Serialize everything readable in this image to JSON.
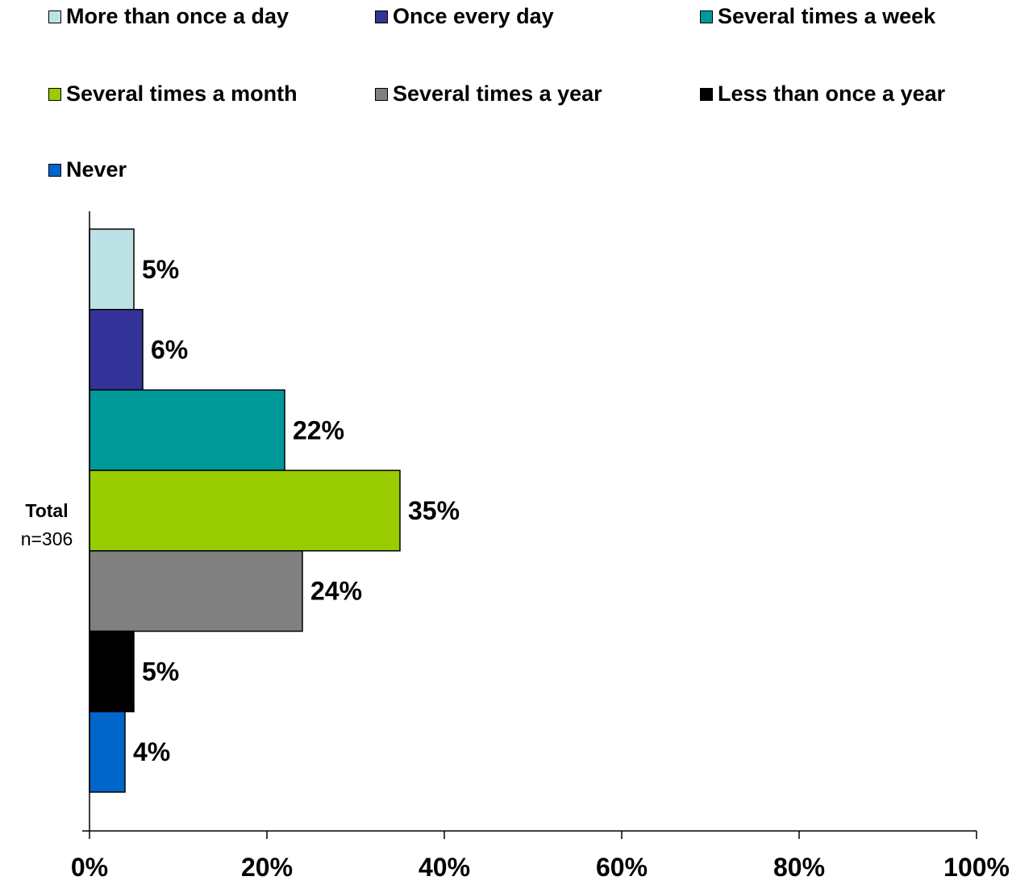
{
  "chart_data": {
    "type": "bar",
    "orientation": "horizontal",
    "categories": [
      "Total"
    ],
    "category_sublabels": [
      "n=306"
    ],
    "series": [
      {
        "name": "More than once a day",
        "values": [
          5
        ],
        "color": "#bde2e6",
        "label": "5%"
      },
      {
        "name": "Once every day",
        "values": [
          6
        ],
        "color": "#333399",
        "label": "6%"
      },
      {
        "name": "Several times a week",
        "values": [
          22
        ],
        "color": "#009999",
        "label": "22%"
      },
      {
        "name": "Several times a month",
        "values": [
          35
        ],
        "color": "#99cc00",
        "label": "35%"
      },
      {
        "name": "Several times a year",
        "values": [
          24
        ],
        "color": "#808080",
        "label": "24%"
      },
      {
        "name": "Less than once a year",
        "values": [
          5
        ],
        "color": "#000000",
        "label": "5%"
      },
      {
        "name": "Never",
        "values": [
          4
        ],
        "color": "#0066cc",
        "label": "4%"
      }
    ],
    "xlim": [
      0,
      100
    ],
    "x_ticks": [
      0,
      20,
      40,
      60,
      80,
      100
    ],
    "x_tick_labels": [
      "0%",
      "20%",
      "40%",
      "60%",
      "80%",
      "100%"
    ],
    "title": "",
    "xlabel": "",
    "ylabel": "",
    "grid": false,
    "legend_position": "top"
  }
}
